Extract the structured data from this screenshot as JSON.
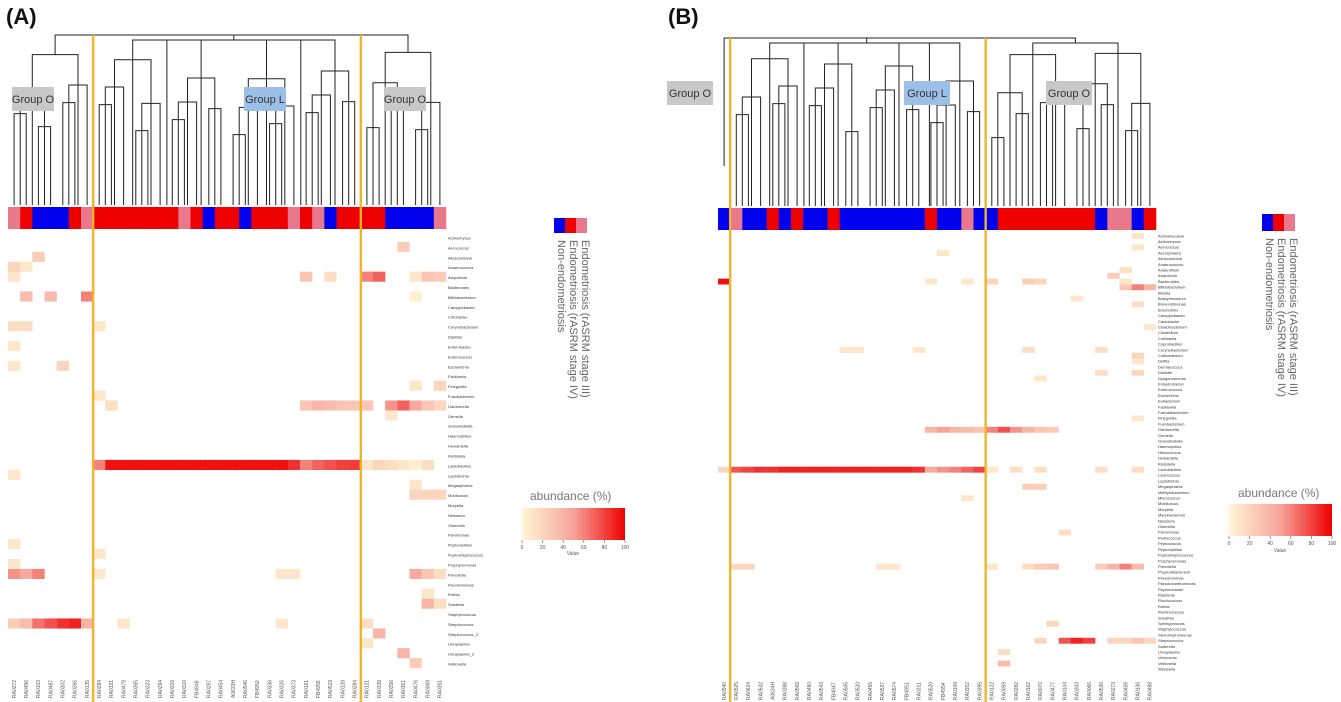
{
  "figure_labels": [
    "(A)",
    "(B)"
  ],
  "colors": {
    "stage34": "#0000ee",
    "stage12": "#ee0000",
    "nonendo": "#e8788a",
    "divider": "#f0b429",
    "group_o_box": "#c8c8c8",
    "group_l_box": "#9cbfe8"
  },
  "legend": {
    "items": [
      {
        "key": "stage34",
        "label": "Endometriosis (rASRM stage  III)"
      },
      {
        "key": "stage12",
        "label": "Endometriosis (rASRM stage IV)"
      },
      {
        "key": "nonendo",
        "label": "Non-endometriosis"
      }
    ]
  },
  "chart_data": [
    {
      "type": "heatmap",
      "title": "(A)",
      "colorbar": {
        "title": "abundance (%)",
        "ticks": [
          0,
          20,
          40,
          60,
          80,
          100
        ],
        "label": "Value",
        "range": [
          0,
          100
        ]
      },
      "groups": [
        "Group O",
        "Group L",
        "Group O"
      ],
      "samples": [
        "RA0272",
        "RA0456",
        "RA0103",
        "RA0487",
        "RA0302",
        "RA0266",
        "RA0135",
        "RA0284",
        "RA0331",
        "RA0479",
        "RA0365",
        "RA0323",
        "RA0294",
        "RA0319",
        "RA0310",
        "FB4948",
        "RA0287",
        "RA0454",
        "A0633H",
        "RA0546",
        "FB4950",
        "RA0336",
        "RA0326",
        "RA0373",
        "RA0161",
        "FB4955",
        "RA0519",
        "RA0128",
        "RA0284",
        "RA0121",
        "RA0339",
        "RA0256",
        "RA0361",
        "RA0476",
        "RA0069",
        "RA0351"
      ],
      "sample_status": [
        2,
        1,
        0,
        0,
        0,
        1,
        2,
        1,
        1,
        1,
        1,
        1,
        1,
        1,
        2,
        1,
        0,
        1,
        1,
        0,
        1,
        1,
        1,
        2,
        1,
        2,
        0,
        1,
        1,
        1,
        1,
        0,
        0,
        0,
        0,
        2
      ],
      "divider_after_index": [
        6,
        28
      ],
      "taxa": [
        "Actinomyces",
        "Aerococcus",
        "Alloscardovia",
        "Anaerococcus",
        "Atopobium",
        "Bacteroides",
        "Bifidobacterium",
        "Campylobacter",
        "Citrobacter",
        "Corynebacterium",
        "Dialister",
        "Enterobacter",
        "Enterococcus",
        "Escherichia",
        "Facklamia",
        "Finegoldia",
        "Fusobacterium",
        "Gardnerella",
        "Gemella",
        "Granulicatella",
        "Haemophilus",
        "Howardella",
        "Klebsiella",
        "Lactobacillus",
        "Leptotrichia",
        "Megasphaera",
        "Mobiluncus",
        "Moryella",
        "Neisseria",
        "Olsenella",
        "Parvimonas",
        "Peptoniphilus",
        "Peptostreptococcus",
        "Porphyromonas",
        "Prevotella",
        "Pseudomonas",
        "Rothia",
        "Sneathia",
        "Staphylococcus",
        "Streptococcus",
        "Streptococcus_2",
        "Ureaplasma",
        "Ureaplasma_2",
        "Veillonella"
      ],
      "nonzero_cells": [
        [
          23,
          7,
          60
        ],
        [
          23,
          8,
          95
        ],
        [
          23,
          9,
          95
        ],
        [
          23,
          10,
          95
        ],
        [
          23,
          11,
          95
        ],
        [
          23,
          12,
          95
        ],
        [
          23,
          13,
          95
        ],
        [
          23,
          14,
          95
        ],
        [
          23,
          15,
          95
        ],
        [
          23,
          16,
          95
        ],
        [
          23,
          17,
          95
        ],
        [
          23,
          18,
          95
        ],
        [
          23,
          19,
          95
        ],
        [
          23,
          20,
          95
        ],
        [
          23,
          21,
          95
        ],
        [
          23,
          22,
          95
        ],
        [
          23,
          23,
          85
        ],
        [
          23,
          24,
          60
        ],
        [
          23,
          25,
          70
        ],
        [
          23,
          26,
          75
        ],
        [
          23,
          27,
          80
        ],
        [
          23,
          28,
          82
        ],
        [
          23,
          29,
          10
        ],
        [
          23,
          30,
          20
        ],
        [
          23,
          31,
          15
        ],
        [
          23,
          32,
          10
        ],
        [
          23,
          33,
          5
        ],
        [
          23,
          34,
          15
        ],
        [
          17,
          8,
          15
        ],
        [
          17,
          24,
          30
        ],
        [
          17,
          25,
          40
        ],
        [
          17,
          26,
          35
        ],
        [
          17,
          27,
          30
        ],
        [
          17,
          28,
          30
        ],
        [
          17,
          29,
          30
        ],
        [
          17,
          31,
          55
        ],
        [
          17,
          32,
          70
        ],
        [
          17,
          33,
          45
        ],
        [
          17,
          34,
          30
        ],
        [
          17,
          35,
          20
        ],
        [
          4,
          0,
          10
        ],
        [
          4,
          24,
          30
        ],
        [
          4,
          26,
          15
        ],
        [
          4,
          29,
          60
        ],
        [
          4,
          30,
          70
        ],
        [
          4,
          33,
          10
        ],
        [
          4,
          34,
          30
        ],
        [
          4,
          35,
          25
        ],
        [
          6,
          1,
          35
        ],
        [
          6,
          3,
          35
        ],
        [
          6,
          6,
          60
        ],
        [
          6,
          33,
          5
        ],
        [
          39,
          0,
          25
        ],
        [
          39,
          1,
          35
        ],
        [
          39,
          2,
          65
        ],
        [
          39,
          3,
          75
        ],
        [
          39,
          4,
          85
        ],
        [
          39,
          5,
          90
        ],
        [
          39,
          6,
          40
        ],
        [
          39,
          9,
          10
        ],
        [
          39,
          22,
          10
        ],
        [
          39,
          29,
          15
        ],
        [
          34,
          0,
          55
        ],
        [
          34,
          1,
          45
        ],
        [
          34,
          2,
          60
        ],
        [
          34,
          7,
          10
        ],
        [
          34,
          22,
          10
        ],
        [
          34,
          23,
          10
        ],
        [
          34,
          33,
          45
        ],
        [
          34,
          34,
          30
        ],
        [
          34,
          35,
          15
        ],
        [
          37,
          34,
          40
        ],
        [
          37,
          35,
          15
        ],
        [
          40,
          30,
          40
        ],
        [
          42,
          32,
          40
        ],
        [
          41,
          29,
          10
        ],
        [
          2,
          2,
          25
        ],
        [
          1,
          32,
          25
        ],
        [
          3,
          0,
          20
        ],
        [
          3,
          1,
          10
        ],
        [
          9,
          0,
          15
        ],
        [
          9,
          1,
          15
        ],
        [
          9,
          7,
          10
        ],
        [
          11,
          0,
          10
        ],
        [
          13,
          0,
          10
        ],
        [
          13,
          4,
          20
        ],
        [
          15,
          35,
          20
        ],
        [
          18,
          31,
          10
        ],
        [
          24,
          0,
          10
        ],
        [
          26,
          33,
          20
        ],
        [
          26,
          34,
          20
        ],
        [
          26,
          35,
          20
        ],
        [
          31,
          0,
          10
        ],
        [
          32,
          7,
          10
        ],
        [
          33,
          0,
          10
        ],
        [
          25,
          33,
          10
        ],
        [
          36,
          34,
          10
        ],
        [
          43,
          33,
          25
        ],
        [
          16,
          7,
          10
        ],
        [
          15,
          33,
          10
        ]
      ]
    },
    {
      "type": "heatmap",
      "title": "(B)",
      "colorbar": {
        "title": "abundance (%)",
        "ticks": [
          0,
          20,
          40,
          60,
          80,
          100
        ],
        "label": "Value",
        "range": [
          0,
          100
        ]
      },
      "groups": [
        "Group O",
        "Group L",
        "Group O"
      ],
      "samples": [
        "RA0540",
        "RA0525",
        "RA0624",
        "RA0532",
        "A0634H",
        "RA0388",
        "RA0569",
        "RA0480",
        "RA0543",
        "FB4947",
        "RA0505",
        "RA0520",
        "RA0455",
        "RA0537",
        "RA0574",
        "FB4951",
        "RA0311",
        "RA0520",
        "FB4954",
        "RA0109",
        "RA0352",
        "RA0395",
        "RA0122",
        "RA0059",
        "RA0282",
        "RA0162",
        "RA0070",
        "RA0477",
        "RA0104",
        "RA0303",
        "RA0066",
        "RA0536",
        "RA0273",
        "RA0459",
        "RA0136",
        "RA0488"
      ],
      "sample_status": [
        0,
        2,
        0,
        0,
        1,
        0,
        1,
        0,
        0,
        1,
        0,
        0,
        0,
        0,
        0,
        0,
        0,
        1,
        0,
        0,
        2,
        0,
        0,
        1,
        1,
        1,
        1,
        1,
        1,
        1,
        1,
        0,
        2,
        2,
        0,
        1
      ],
      "divider_after_index": [
        0,
        21
      ],
      "taxa": [
        "Actinobaculum",
        "Actinomyces",
        "Aerococcus",
        "Aerosphaera",
        "Alloscardovia",
        "Anaerococcus",
        "Anaerofilum",
        "Atopobium",
        "Bacteroides",
        "Bifidobacterium",
        "Blautia",
        "Bradyrhizobium",
        "Brevundimonas",
        "Brochothrix",
        "Campylobacter",
        "Caulobacter",
        "Cloacibacterium",
        "Clostridium",
        "Collinsella",
        "Coprobacillus",
        "Corynebacterium",
        "Cutibacterium",
        "Delftia",
        "Dermacoccus",
        "Dialister",
        "Dysgonomonas",
        "Enhydrobacter",
        "Enterococcus",
        "Escherichia",
        "Eubacterium",
        "Facklamia",
        "Faecalibacterium",
        "Finegoldia",
        "Fusobacterium",
        "Gardnerella",
        "Gemella",
        "Granulicatella",
        "Haemophilus",
        "Helcococcus",
        "Howardella",
        "Klebsiella",
        "Lactobacillus",
        "Lactococcus",
        "Leptotrichia",
        "Megasphaera",
        "Methylobacterium",
        "Micrococcus",
        "Mobiluncus",
        "Moryella",
        "Mycobacterium",
        "Neisseria",
        "Olsenella",
        "Parvimonas",
        "Pediococcus",
        "Peptococcus",
        "Peptoniphilus",
        "Peptostreptococcus",
        "Porphyromonas",
        "Prevotella",
        "Propionibacterium",
        "Pseudomonas",
        "Pseudoxanthomonas",
        "Psychrobacter",
        "Ralstonia",
        "Rhodococcus",
        "Rothia",
        "Ruminococcus",
        "Sneathia",
        "Sphingomonas",
        "Staphylococcus",
        "Stenotrophomonas",
        "Streptococcus",
        "Sutterella",
        "Ureaplasma",
        "Variovorax",
        "Veillonella",
        "Weissella"
      ],
      "nonzero_cells": [
        [
          41,
          0,
          20
        ],
        [
          41,
          1,
          75
        ],
        [
          41,
          2,
          80
        ],
        [
          41,
          3,
          85
        ],
        [
          41,
          4,
          85
        ],
        [
          41,
          5,
          90
        ],
        [
          41,
          6,
          90
        ],
        [
          41,
          7,
          90
        ],
        [
          41,
          8,
          90
        ],
        [
          41,
          9,
          90
        ],
        [
          41,
          10,
          90
        ],
        [
          41,
          11,
          90
        ],
        [
          41,
          12,
          90
        ],
        [
          41,
          13,
          90
        ],
        [
          41,
          14,
          90
        ],
        [
          41,
          15,
          90
        ],
        [
          41,
          16,
          85
        ],
        [
          41,
          17,
          45
        ],
        [
          41,
          18,
          55
        ],
        [
          41,
          19,
          60
        ],
        [
          41,
          20,
          70
        ],
        [
          41,
          21,
          80
        ],
        [
          41,
          22,
          10
        ],
        [
          41,
          24,
          15
        ],
        [
          41,
          26,
          15
        ],
        [
          41,
          31,
          15
        ],
        [
          41,
          34,
          15
        ],
        [
          8,
          0,
          95
        ],
        [
          8,
          17,
          10
        ],
        [
          8,
          20,
          10
        ],
        [
          8,
          22,
          20
        ],
        [
          8,
          25,
          25
        ],
        [
          8,
          26,
          20
        ],
        [
          8,
          33,
          10
        ],
        [
          34,
          17,
          40
        ],
        [
          34,
          18,
          50
        ],
        [
          34,
          19,
          40
        ],
        [
          34,
          20,
          35
        ],
        [
          34,
          21,
          30
        ],
        [
          34,
          22,
          60
        ],
        [
          34,
          23,
          75
        ],
        [
          34,
          24,
          55
        ],
        [
          34,
          25,
          40
        ],
        [
          34,
          26,
          30
        ],
        [
          34,
          27,
          25
        ],
        [
          71,
          26,
          20
        ],
        [
          71,
          28,
          75
        ],
        [
          71,
          29,
          90
        ],
        [
          71,
          30,
          80
        ],
        [
          71,
          32,
          20
        ],
        [
          71,
          33,
          20
        ],
        [
          71,
          34,
          30
        ],
        [
          71,
          35,
          20
        ],
        [
          58,
          1,
          20
        ],
        [
          58,
          2,
          20
        ],
        [
          58,
          13,
          10
        ],
        [
          58,
          14,
          10
        ],
        [
          58,
          22,
          10
        ],
        [
          58,
          25,
          15
        ],
        [
          58,
          26,
          25
        ],
        [
          58,
          27,
          30
        ],
        [
          58,
          31,
          25
        ],
        [
          58,
          32,
          40
        ],
        [
          58,
          33,
          60
        ],
        [
          58,
          34,
          35
        ],
        [
          9,
          33,
          30
        ],
        [
          9,
          34,
          60
        ],
        [
          9,
          35,
          40
        ],
        [
          7,
          32,
          25
        ],
        [
          6,
          33,
          15
        ],
        [
          44,
          25,
          25
        ],
        [
          44,
          26,
          25
        ],
        [
          46,
          20,
          10
        ],
        [
          68,
          27,
          20
        ],
        [
          73,
          23,
          15
        ],
        [
          75,
          23,
          35
        ],
        [
          52,
          28,
          15
        ],
        [
          25,
          26,
          10
        ],
        [
          24,
          31,
          15
        ],
        [
          24,
          34,
          20
        ],
        [
          20,
          10,
          10
        ],
        [
          20,
          11,
          10
        ],
        [
          20,
          16,
          10
        ],
        [
          20,
          25,
          15
        ],
        [
          20,
          31,
          15
        ],
        [
          21,
          34,
          20
        ],
        [
          22,
          34,
          10
        ],
        [
          16,
          35,
          10
        ],
        [
          32,
          34,
          10
        ],
        [
          11,
          29,
          10
        ],
        [
          12,
          34,
          15
        ],
        [
          3,
          18,
          10
        ],
        [
          2,
          34,
          10
        ],
        [
          0,
          34,
          10
        ]
      ]
    }
  ]
}
